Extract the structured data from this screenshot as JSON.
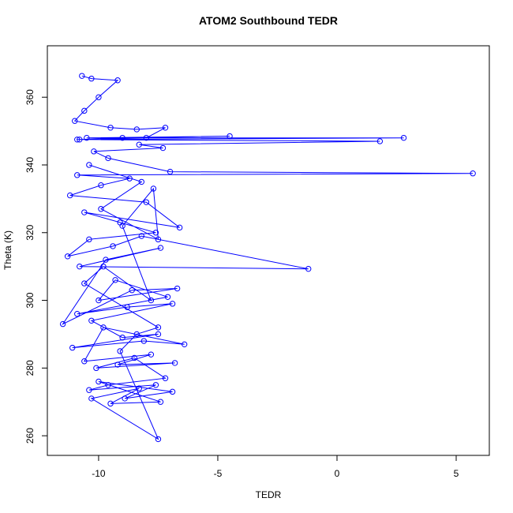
{
  "chart_data": {
    "type": "line",
    "title": "ATOM2 Southbound TEDR",
    "x_label": "TEDR",
    "y_label": "Theta (K)",
    "color": "blue",
    "marker": "open-circle",
    "xlim": [
      -12.15,
      6.39
    ],
    "ylim": [
      254.2,
      375.2
    ],
    "xticks": [
      -10,
      -5,
      0,
      5
    ],
    "yticks": [
      260,
      280,
      300,
      320,
      340,
      360
    ],
    "x": [
      -10.7,
      -10.3,
      -9.2,
      -10.0,
      -10.6,
      -11.0,
      -9.5,
      -8.4,
      -7.2,
      -8.0,
      -10.8,
      -9.0,
      -4.5,
      -10.5,
      2.8,
      -10.9,
      1.8,
      -8.3,
      -7.3,
      -10.2,
      -9.6,
      -7.0,
      5.7,
      -10.9,
      -8.7,
      -9.9,
      -11.2,
      -8.0,
      -6.6,
      -10.6,
      -9.1,
      -7.6,
      -10.4,
      -11.3,
      -9.4,
      -8.2,
      -1.2,
      -10.8,
      -7.4,
      -9.7,
      -11.5,
      -8.6,
      -6.7,
      -10.0,
      -9.3,
      -7.1,
      -10.9,
      -8.8,
      -6.9,
      -10.3,
      -9.0,
      -7.5,
      -11.1,
      -8.1,
      -6.4,
      -9.8,
      -10.6,
      -7.8,
      -9.2,
      -6.8,
      -10.1,
      -8.5,
      -7.2,
      -9.6,
      -10.4,
      -7.6,
      -8.9,
      -6.9,
      -10.0,
      -7.4,
      -9.5,
      -8.3,
      -10.3,
      -7.5,
      -9.1,
      -8.4,
      -7.5,
      -10.6,
      -9.8,
      -7.8,
      -9.0,
      -7.7,
      -7.5,
      -9.9,
      -8.2,
      -10.4
    ],
    "values": [
      366.3,
      365.5,
      365,
      360,
      356,
      353,
      351,
      350.5,
      351,
      348,
      347.5,
      348,
      348.5,
      348,
      348,
      347.5,
      347,
      346,
      345,
      344,
      342,
      338,
      337.5,
      337,
      336,
      334,
      331,
      329,
      321.5,
      326,
      323,
      320,
      318,
      313,
      316,
      319,
      309.3,
      310,
      315.5,
      312,
      293,
      303,
      303.5,
      300,
      306,
      301,
      296,
      298,
      299,
      294,
      289,
      290,
      286,
      288,
      287,
      292,
      282,
      284,
      281,
      281.5,
      280,
      283,
      277,
      275,
      273.5,
      275,
      271,
      273,
      276,
      270,
      269.5,
      274,
      271,
      259,
      285,
      290,
      292,
      305,
      310,
      300,
      322,
      333,
      318,
      327,
      335,
      340
    ]
  }
}
